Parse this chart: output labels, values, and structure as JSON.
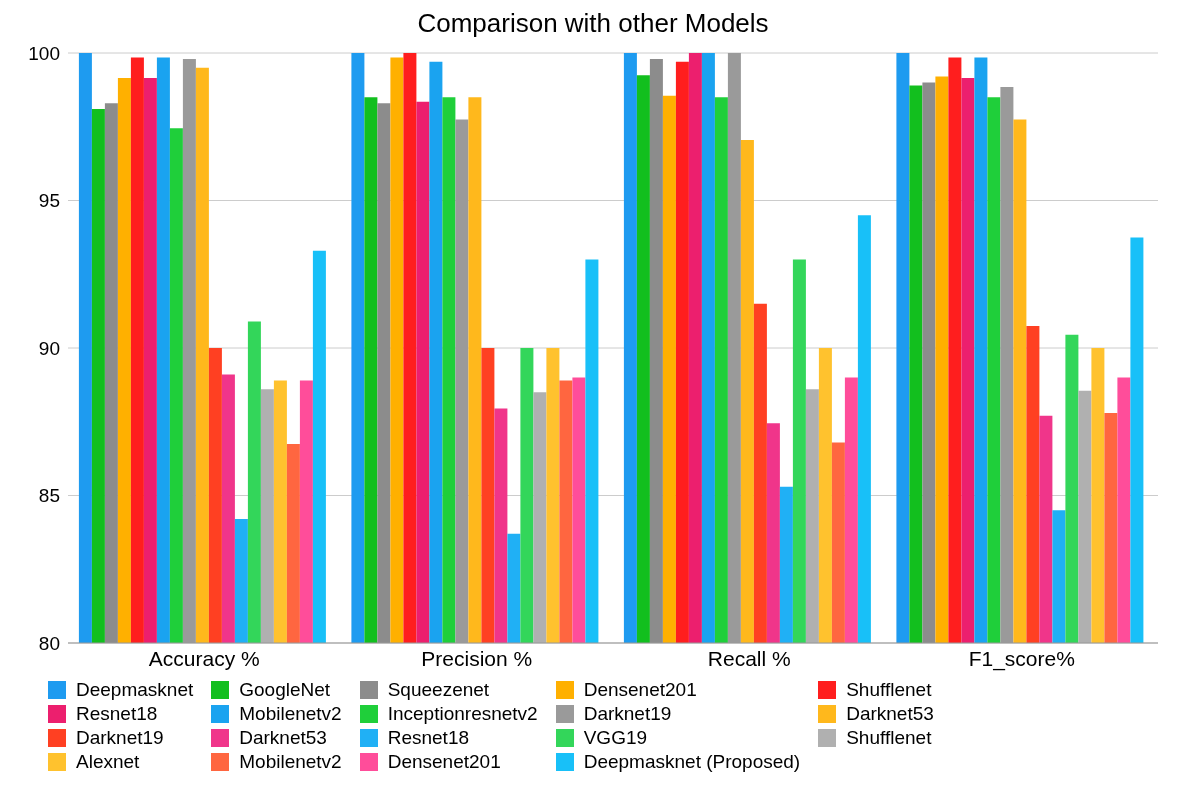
{
  "chart_data": {
    "type": "bar",
    "title": "Comparison with other Models",
    "categories": [
      "Accuracy %",
      "Precision %",
      "Recall %",
      "F1_score%"
    ],
    "ylim": [
      80,
      100
    ],
    "yticks": [
      80,
      85,
      90,
      95,
      100
    ],
    "grid": "y",
    "legend": "bottom",
    "series": [
      {
        "name": "Deepmasknet",
        "color": "#1e9bf0",
        "values": [
          100,
          100,
          100,
          100
        ]
      },
      {
        "name": "GoogleNet",
        "color": "#12bf1e",
        "values": [
          98.1,
          98.5,
          99.25,
          98.9
        ]
      },
      {
        "name": "Squeezenet",
        "color": "#8c8c8c",
        "values": [
          98.3,
          98.3,
          99.8,
          99.0
        ]
      },
      {
        "name": "Densenet201",
        "color": "#ffb000",
        "values": [
          99.15,
          99.85,
          98.55,
          99.2
        ]
      },
      {
        "name": "Shufflenet",
        "color": "#ff1e1e",
        "values": [
          99.85,
          100,
          99.7,
          99.85
        ]
      },
      {
        "name": "Resnet18",
        "color": "#ec1f6e",
        "values": [
          99.15,
          98.35,
          100,
          99.15
        ]
      },
      {
        "name": "Mobilenetv2",
        "color": "#1aa3f0",
        "values": [
          99.85,
          99.7,
          100,
          99.85
        ]
      },
      {
        "name": "Inceptionresnetv2",
        "color": "#1fcf3a",
        "values": [
          97.45,
          98.5,
          98.5,
          98.5
        ]
      },
      {
        "name": "Darknet19",
        "color": "#9a9a9a",
        "values": [
          99.8,
          97.75,
          100,
          98.85
        ]
      },
      {
        "name": "Darknet53",
        "color": "#ffb81c",
        "values": [
          99.5,
          98.5,
          97.05,
          97.75
        ]
      },
      {
        "name": "Darknet19",
        "color": "#ff4022",
        "values": [
          90.0,
          90.0,
          91.5,
          90.75
        ]
      },
      {
        "name": "Darknet53",
        "color": "#f0358a",
        "values": [
          89.1,
          87.95,
          87.45,
          87.7
        ]
      },
      {
        "name": "Resnet18",
        "color": "#20b0f5",
        "values": [
          84.2,
          83.7,
          85.3,
          84.5
        ]
      },
      {
        "name": "VGG19",
        "color": "#33d65a",
        "values": [
          90.9,
          90.0,
          93.0,
          90.45
        ]
      },
      {
        "name": "Shufflenet",
        "color": "#b0b0b0",
        "values": [
          88.6,
          88.5,
          88.6,
          88.55
        ]
      },
      {
        "name": "Alexnet",
        "color": "#ffc22e",
        "values": [
          88.9,
          90.0,
          90.0,
          90.0
        ]
      },
      {
        "name": "Mobilenetv2",
        "color": "#ff6640",
        "values": [
          86.75,
          88.9,
          86.8,
          87.8
        ]
      },
      {
        "name": "Densenet201",
        "color": "#ff4d9a",
        "values": [
          88.9,
          89.0,
          89.0,
          89.0
        ]
      },
      {
        "name": "Deepmasknet (Proposed)",
        "color": "#18c0f8",
        "values": [
          93.3,
          93.0,
          94.5,
          93.75
        ]
      }
    ]
  }
}
